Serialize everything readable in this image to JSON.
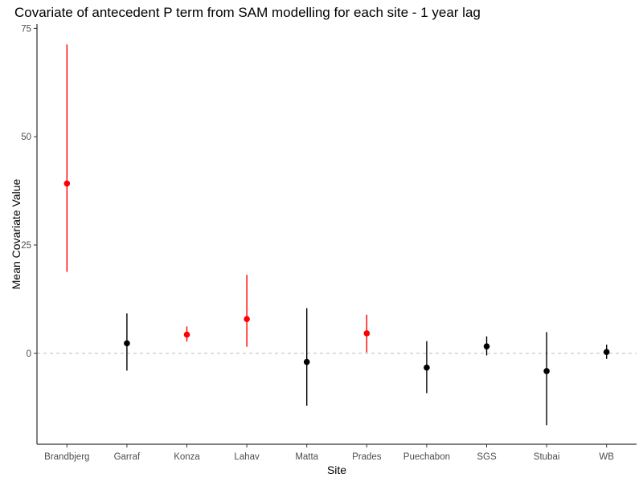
{
  "chart_data": {
    "type": "scatter",
    "title": "Covariate of antecedent P term from SAM modelling for each site - 1 year lag",
    "xlabel": "Site",
    "ylabel": "Mean Covariate Value",
    "ylim": [
      -21,
      76
    ],
    "yticks": [
      0,
      25,
      50,
      75
    ],
    "reference_line": 0,
    "grid": false,
    "colors": {
      "significant": "#ff0000",
      "nonsignificant": "#000000",
      "reference": "#bebebe"
    },
    "categories": [
      "Brandbjerg",
      "Garraf",
      "Konza",
      "Lahav",
      "Matta",
      "Prades",
      "Puechabon",
      "SGS",
      "Stubai",
      "WB"
    ],
    "points": [
      {
        "site": "Brandbjerg",
        "mean": 39.2,
        "lower": 18.8,
        "upper": 71.3,
        "significant": true
      },
      {
        "site": "Garraf",
        "mean": 2.3,
        "lower": -4.0,
        "upper": 9.2,
        "significant": false
      },
      {
        "site": "Konza",
        "mean": 4.3,
        "lower": 2.7,
        "upper": 6.2,
        "significant": true
      },
      {
        "site": "Lahav",
        "mean": 7.9,
        "lower": 1.5,
        "upper": 18.1,
        "significant": true
      },
      {
        "site": "Matta",
        "mean": -2.0,
        "lower": -12.1,
        "upper": 10.4,
        "significant": false
      },
      {
        "site": "Prades",
        "mean": 4.6,
        "lower": 0.2,
        "upper": 8.9,
        "significant": true
      },
      {
        "site": "Puechabon",
        "mean": -3.3,
        "lower": -9.2,
        "upper": 2.8,
        "significant": false
      },
      {
        "site": "SGS",
        "mean": 1.6,
        "lower": -0.5,
        "upper": 3.9,
        "significant": false
      },
      {
        "site": "Stubai",
        "mean": -4.1,
        "lower": -16.6,
        "upper": 4.9,
        "significant": false
      },
      {
        "site": "WB",
        "mean": 0.3,
        "lower": -1.3,
        "upper": 2.0,
        "significant": false
      }
    ]
  }
}
